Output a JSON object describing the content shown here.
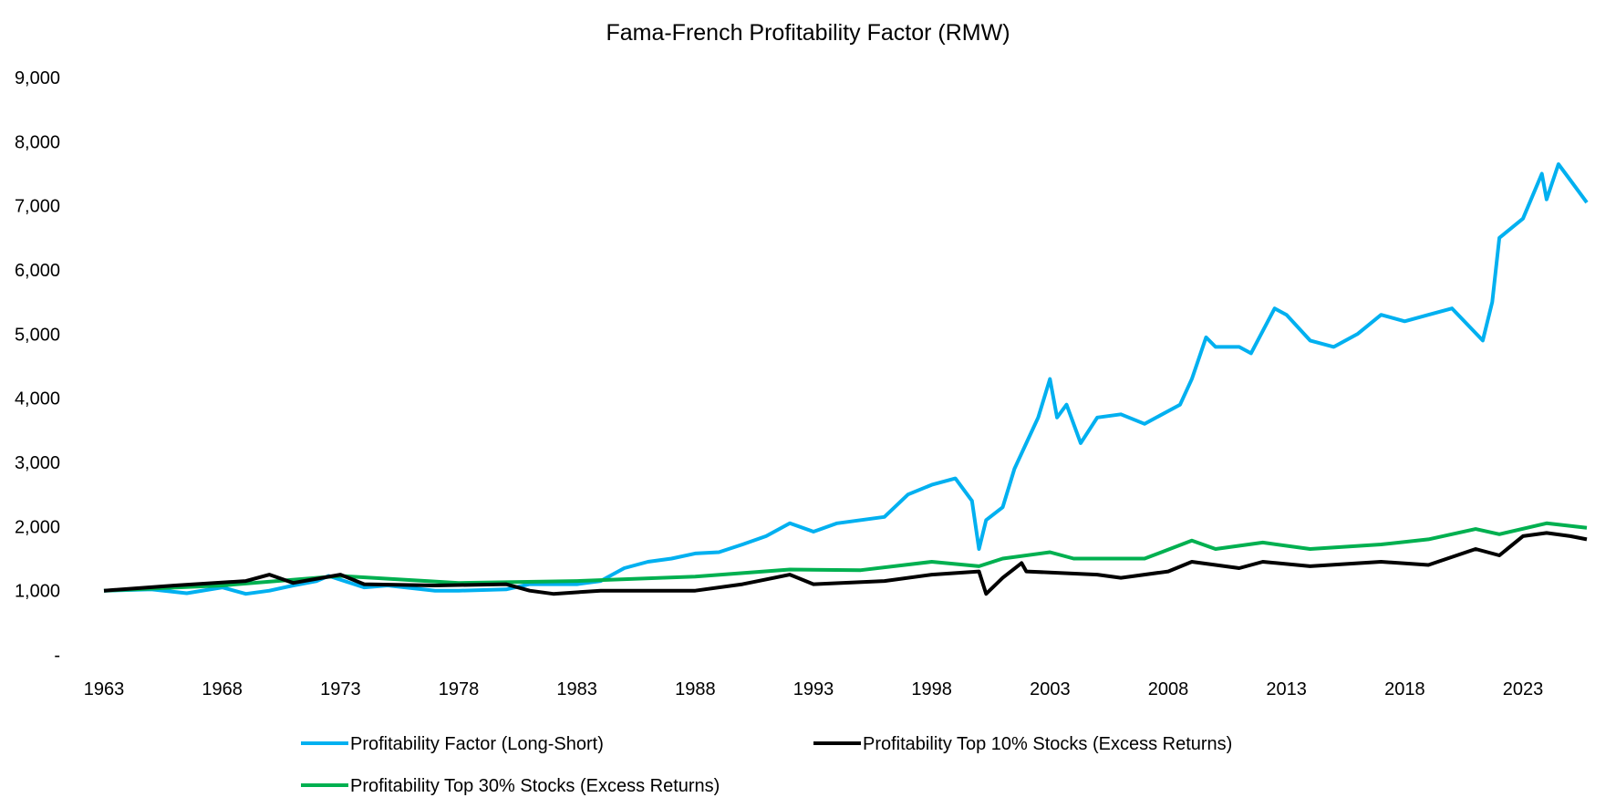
{
  "chart_data": {
    "type": "line",
    "title": "Fama-French Profitability Factor (RMW)",
    "xlabel": "",
    "ylabel": "",
    "xlim": [
      1963,
      2025.7
    ],
    "ylim": [
      0,
      9000
    ],
    "x_ticks": [
      "1963",
      "1968",
      "1973",
      "1978",
      "1983",
      "1988",
      "1993",
      "1998",
      "2003",
      "2008",
      "2013",
      "2018",
      "2023"
    ],
    "y_ticks": [
      "-",
      "1,000",
      "2,000",
      "3,000",
      "4,000",
      "5,000",
      "6,000",
      "7,000",
      "8,000",
      "9,000"
    ],
    "grid": false,
    "legend": "bottom",
    "series": [
      {
        "name": "Profitability Factor (Long-Short)",
        "color": "#00B0F0",
        "x": [
          1963,
          1965,
          1966.5,
          1968,
          1969,
          1970,
          1971,
          1972,
          1972.5,
          1974,
          1975,
          1977,
          1978,
          1980,
          1981,
          1983,
          1984,
          1985,
          1986,
          1987,
          1988,
          1989,
          1990,
          1991,
          1992,
          1993,
          1994,
          1996,
          1997,
          1998,
          1999,
          1999.7,
          2000,
          2000.3,
          2001,
          2001.5,
          2002,
          2002.5,
          2003,
          2003.3,
          2003.7,
          2004.3,
          2005,
          2006,
          2007,
          2008,
          2008.5,
          2009,
          2009.6,
          2010,
          2011,
          2011.5,
          2012.5,
          2013,
          2014,
          2015,
          2016,
          2017,
          2018,
          2019,
          2020,
          2021.3,
          2021.7,
          2022,
          2023,
          2023.8,
          2024,
          2024.5,
          2025,
          2025.7
        ],
        "values": [
          1000,
          1020,
          960,
          1050,
          950,
          1000,
          1080,
          1150,
          1230,
          1050,
          1080,
          1000,
          1000,
          1020,
          1100,
          1100,
          1150,
          1350,
          1450,
          1500,
          1580,
          1600,
          1720,
          1850,
          2050,
          1920,
          2050,
          2150,
          2500,
          2650,
          2750,
          2400,
          1650,
          2100,
          2300,
          2900,
          3300,
          3700,
          4300,
          3700,
          3900,
          3300,
          3700,
          3750,
          3600,
          3800,
          3900,
          4300,
          4950,
          4800,
          4800,
          4700,
          5400,
          5300,
          4900,
          4800,
          5000,
          5300,
          5200,
          5300,
          5400,
          4900,
          5500,
          6500,
          6800,
          7500,
          7100,
          7650,
          7400,
          7050
        ]
      },
      {
        "name": "Profitability Top 10% Stocks (Excess Returns)",
        "color": "#000000",
        "x": [
          1963,
          1966,
          1969,
          1970,
          1971,
          1973,
          1974,
          1977,
          1980,
          1981,
          1982,
          1984,
          1988,
          1990,
          1992,
          1993,
          1996,
          1998,
          2000,
          2000.3,
          2001,
          2001.8,
          2002,
          2005,
          2006,
          2008,
          2009,
          2010,
          2011,
          2012,
          2014,
          2017,
          2019,
          2021,
          2022,
          2023,
          2024,
          2025,
          2025.7
        ],
        "values": [
          1000,
          1080,
          1150,
          1250,
          1120,
          1250,
          1100,
          1080,
          1100,
          1000,
          950,
          1000,
          1000,
          1100,
          1250,
          1100,
          1150,
          1250,
          1300,
          950,
          1200,
          1430,
          1300,
          1250,
          1200,
          1300,
          1450,
          1400,
          1350,
          1450,
          1380,
          1450,
          1400,
          1650,
          1550,
          1850,
          1900,
          1850,
          1800
        ]
      },
      {
        "name": "Profitability Top 30% Stocks (Excess Returns)",
        "color": "#00B050",
        "x": [
          1963,
          1968,
          1973,
          1978,
          1983,
          1988,
          1992,
          1995,
          1998,
          2000,
          2001,
          2003,
          2004,
          2007,
          2009,
          2010,
          2012,
          2014,
          2017,
          2019,
          2021,
          2022,
          2024,
          2025.7
        ],
        "values": [
          1000,
          1080,
          1230,
          1120,
          1150,
          1220,
          1330,
          1320,
          1450,
          1380,
          1500,
          1600,
          1500,
          1500,
          1780,
          1650,
          1750,
          1650,
          1720,
          1800,
          1960,
          1880,
          2050,
          1980
        ]
      }
    ]
  }
}
